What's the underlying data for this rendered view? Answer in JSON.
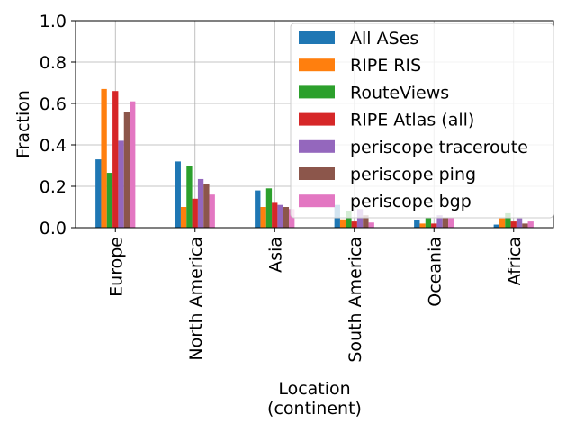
{
  "chart_data": {
    "type": "bar",
    "xlabel": "Location\n(continent)",
    "ylabel": "Fraction",
    "ylim": [
      0,
      1.0
    ],
    "yticks": [
      0.0,
      0.2,
      0.4,
      0.6,
      0.8,
      1.0
    ],
    "grid": true,
    "legend_position": "top-right",
    "categories": [
      "Europe",
      "North America",
      "Asia",
      "South America",
      "Oceania",
      "Africa"
    ],
    "series": [
      {
        "name": "All ASes",
        "color": "#1f77b4",
        "values": [
          0.33,
          0.32,
          0.18,
          0.11,
          0.035,
          0.015
        ]
      },
      {
        "name": "RIPE RIS",
        "color": "#ff7f0e",
        "values": [
          0.67,
          0.1,
          0.1,
          0.04,
          0.02,
          0.045
        ]
      },
      {
        "name": "RouteViews",
        "color": "#2ca02c",
        "values": [
          0.265,
          0.3,
          0.19,
          0.08,
          0.05,
          0.07
        ]
      },
      {
        "name": "RIPE Atlas (all)",
        "color": "#d62728",
        "values": [
          0.66,
          0.14,
          0.12,
          0.03,
          0.02,
          0.03
        ]
      },
      {
        "name": "periscope traceroute",
        "color": "#9467bd",
        "values": [
          0.42,
          0.235,
          0.11,
          0.09,
          0.06,
          0.045
        ]
      },
      {
        "name": "periscope ping",
        "color": "#8c564b",
        "values": [
          0.56,
          0.21,
          0.1,
          0.06,
          0.05,
          0.02
        ]
      },
      {
        "name": "periscope bgp",
        "color": "#e377c2",
        "values": [
          0.61,
          0.16,
          0.09,
          0.025,
          0.05,
          0.03
        ]
      }
    ]
  }
}
